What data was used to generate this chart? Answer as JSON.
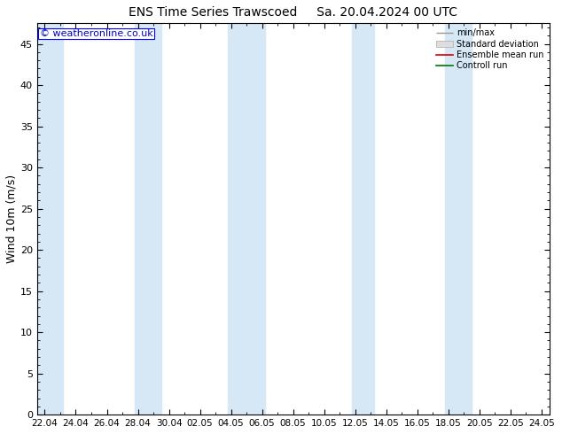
{
  "title_left": "ENS Time Series Trawscoed",
  "title_right": "Sa. 20.04.2024 00 UTC",
  "ylabel": "Wind 10m (m/s)",
  "ylim": [
    0,
    47.5
  ],
  "yticks": [
    0,
    5,
    10,
    15,
    20,
    25,
    30,
    35,
    40,
    45
  ],
  "watermark": "© weatheronline.co.uk",
  "legend_items": [
    "min/max",
    "Standard deviation",
    "Ensemble mean run",
    "Controll run"
  ],
  "background_color": "#ffffff",
  "plot_bg_color": "#ffffff",
  "band_color": "#d6e8f5",
  "x_tick_labels": [
    "22.04",
    "24.04",
    "26.04",
    "28.04",
    "30.04",
    "02.05",
    "04.05",
    "06.05",
    "08.05",
    "10.05",
    "12.05",
    "14.05",
    "16.05",
    "18.05",
    "20.05",
    "22.05",
    "24.05"
  ],
  "x_tick_positions": [
    0,
    2,
    4,
    6,
    8,
    10,
    12,
    14,
    16,
    18,
    20,
    22,
    24,
    26,
    28,
    30,
    32
  ],
  "shaded_regions": [
    [
      -0.5,
      1.2
    ],
    [
      5.8,
      7.5
    ],
    [
      11.8,
      14.2
    ],
    [
      19.8,
      21.2
    ],
    [
      25.8,
      27.5
    ]
  ],
  "n_points": 33
}
